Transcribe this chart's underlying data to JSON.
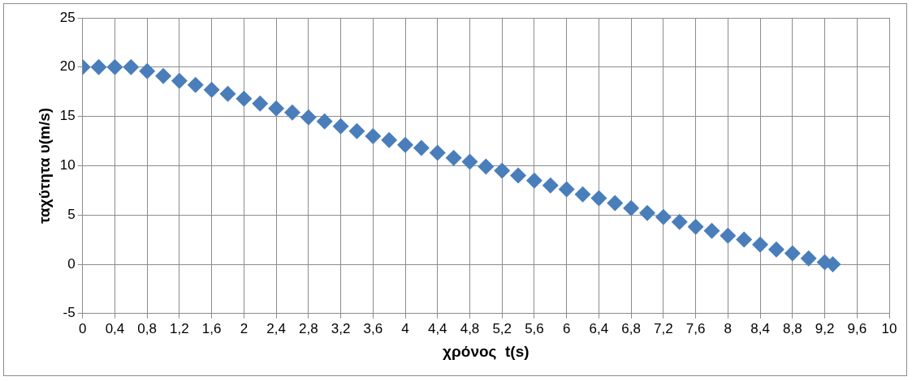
{
  "chart_data": {
    "type": "scatter",
    "xlabel": "χρόνος  t(s)",
    "ylabel": "ταχύτητα υ(m/s)",
    "x": [
      0,
      0.2,
      0.4,
      0.6,
      0.8,
      1.0,
      1.2,
      1.4,
      1.6,
      1.8,
      2.0,
      2.2,
      2.4,
      2.6,
      2.8,
      3.0,
      3.2,
      3.4,
      3.6,
      3.8,
      4.0,
      4.2,
      4.4,
      4.6,
      4.8,
      5.0,
      5.2,
      5.4,
      5.6,
      5.8,
      6.0,
      6.2,
      6.4,
      6.6,
      6.8,
      7.0,
      7.2,
      7.4,
      7.6,
      7.8,
      8.0,
      8.2,
      8.4,
      8.6,
      8.8,
      9.0,
      9.2,
      9.3
    ],
    "series": [
      {
        "color": "#4a7ebb",
        "values": [
          20,
          20,
          20,
          20,
          19.6,
          19.1,
          18.6,
          18.2,
          17.7,
          17.3,
          16.8,
          16.3,
          15.8,
          15.4,
          14.9,
          14.5,
          14.0,
          13.5,
          13.0,
          12.6,
          12.1,
          11.8,
          11.3,
          10.8,
          10.4,
          9.9,
          9.5,
          9.0,
          8.5,
          8.0,
          7.6,
          7.1,
          6.7,
          6.2,
          5.7,
          5.2,
          4.8,
          4.3,
          3.8,
          3.4,
          2.9,
          2.5,
          2.0,
          1.5,
          1.1,
          0.6,
          0.2,
          0
        ]
      }
    ],
    "xlim": [
      0,
      10
    ],
    "xticks": [
      0,
      {
        "value": 0.4,
        "label": "0,4"
      },
      {
        "value": 0.8,
        "label": "0,8"
      },
      {
        "value": 1.2,
        "label": "1,2"
      },
      {
        "value": 1.6,
        "label": "1,6"
      },
      2,
      {
        "value": 2.4,
        "label": "2,4"
      },
      {
        "value": 2.8,
        "label": "2,8"
      },
      {
        "value": 3.2,
        "label": "3,2"
      },
      {
        "value": 3.6,
        "label": "3,6"
      },
      4,
      {
        "value": 4.4,
        "label": "4,4"
      },
      {
        "value": 4.8,
        "label": "4,8"
      },
      {
        "value": 5.2,
        "label": "5,2"
      },
      {
        "value": 5.6,
        "label": "5,6"
      },
      6,
      {
        "value": 6.4,
        "label": "6,4"
      },
      {
        "value": 6.8,
        "label": "6,8"
      },
      {
        "value": 7.2,
        "label": "7,2"
      },
      {
        "value": 7.6,
        "label": "7,6"
      },
      8,
      {
        "value": 8.4,
        "label": "8,4"
      },
      {
        "value": 8.8,
        "label": "8,8"
      },
      {
        "value": 9.2,
        "label": "9,2"
      },
      {
        "value": 9.6,
        "label": "9,6"
      },
      10
    ],
    "ylim": [
      -5,
      25
    ],
    "yticks": [
      -5,
      0,
      5,
      10,
      15,
      20,
      25
    ],
    "grid": true,
    "legend": false,
    "marker": "diamond"
  }
}
